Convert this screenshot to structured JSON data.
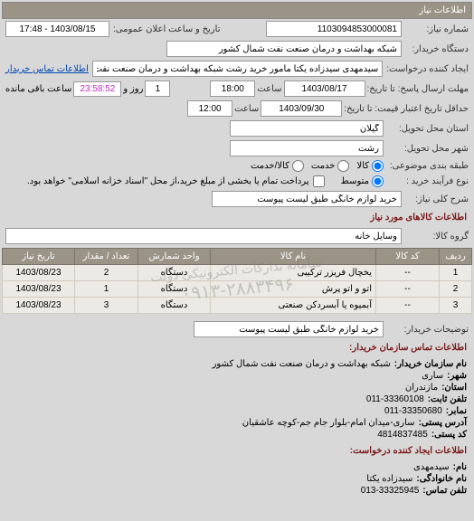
{
  "header": {
    "title": "اطلاعات نیاز"
  },
  "need": {
    "number_label": "شماره نیاز:",
    "number": "1103094853000081",
    "announce_label": "تاریخ و ساعت اعلان عمومی:",
    "announce_val": "1403/08/15 - 17:48"
  },
  "buyer": {
    "org_label": "دستگاه خریدار:",
    "org": "شبکه بهداشت و درمان صنعت نفت شمال کشور"
  },
  "requester": {
    "label": "ایجاد کننده درخواست:",
    "value": "سیدمهدی سیدزاده یکتا مامور خرید رشت شبکه بهداشت و درمان صنعت نفت ش",
    "contact_link": "اطلاعات تماس خریدار"
  },
  "deadlines": {
    "resp_label": "مهلت ارسال پاسخ: تا تاریخ:",
    "resp_date": "1403/08/17",
    "resp_time_label": "ساعت",
    "resp_time": "18:00",
    "days": "1",
    "days_label": "روز و",
    "countdown": "23:58:52",
    "remain_label": "ساعت باقی مانده",
    "valid_label": "حداقل تاریخ اعتبار قیمت: تا تاریخ:",
    "valid_date": "1403/09/30",
    "valid_time": "12:00"
  },
  "location": {
    "province_label": "استان محل تحویل:",
    "province": "گیلان",
    "city_label": "شهر محل تحویل:",
    "city": "رشت"
  },
  "classification": {
    "label": "طبقه بندی موضوعی:",
    "opts": {
      "goods": "کالا",
      "service": "خدمت",
      "both": "کالا/خدمت"
    },
    "selected": "goods"
  },
  "process": {
    "label": "نوع فرآیند خرید :",
    "value": "متوسط",
    "payment_note": "پرداخت تمام یا بخشی از مبلغ خرید،از محل \"اسناد خزانه اسلامی\" خواهد بود."
  },
  "summary": {
    "label": "شرح کلی نیاز:",
    "value": "خرید لوازم خانگی طبق لیست پیوست"
  },
  "items_section": {
    "title": "اطلاعات کالاهای مورد نیاز",
    "group_label": "گروه کالا:",
    "group": "وسایل خانه"
  },
  "table": {
    "cols": [
      "ردیف",
      "کد کالا",
      "نام کالا",
      "واحد شمارش",
      "تعداد / مقدار",
      "تاریخ نیاز"
    ],
    "col_widths": [
      "36px",
      "70px",
      "auto",
      "80px",
      "70px",
      "80px"
    ],
    "rows": [
      [
        "1",
        "--",
        "یخچال فریزر ترکیبی",
        "دستگاه",
        "2",
        "1403/08/23"
      ],
      [
        "2",
        "--",
        "اتو و اتو پرش",
        "دستگاه",
        "1",
        "1403/08/23"
      ],
      [
        "3",
        "--",
        "آبمیوه یا آبسردکن صنعتی",
        "دستگاه",
        "3",
        "1403/08/23"
      ]
    ]
  },
  "watermark": {
    "line1": "سامانه تدارکات الکترونیکی دولت",
    "line2": "۰۹۱۳-۲۸۸۳۴۹۶"
  },
  "buyer_note": {
    "label": "توضیحات خریدار:",
    "value": "خرید لوازم خانگی طبق لیست پیوست"
  },
  "contact_section": {
    "title": "اطلاعات تماس سازمان خریدار:"
  },
  "contact": {
    "org_k": "نام سازمان خریدار:",
    "org_v": "شبکه بهداشت و درمان صنعت نفت شمال کشور",
    "city_k": "شهر:",
    "city_v": "ساری",
    "province_k": "استان:",
    "province_v": "مازندران",
    "phone_k": "تلفن ثابت:",
    "phone_v": "011-33360108",
    "fax_k": "نمابر:",
    "fax_v": "011-33350680",
    "addr_k": "آدرس پستی:",
    "addr_v": "ساری-میدان امام-بلوار جام جم-کوچه عاشقیان",
    "post_k": "کد پستی:",
    "post_v": "4814837485"
  },
  "creator_section": {
    "title": "اطلاعات ایجاد کننده درخواست:"
  },
  "creator": {
    "name_k": "نام:",
    "name_v": "سیدمهدی",
    "family_k": "نام خانوادگی:",
    "family_v": "سیدزاده یکتا",
    "phone_k": "تلفن تماس:",
    "phone_v": "013-33325945"
  },
  "colors": {
    "header_bg": "#9a9386",
    "panel_bg": "#d8d8d8",
    "section_title": "#7a1a1a",
    "link": "#0047b3",
    "countdown": "#c02bc0"
  }
}
